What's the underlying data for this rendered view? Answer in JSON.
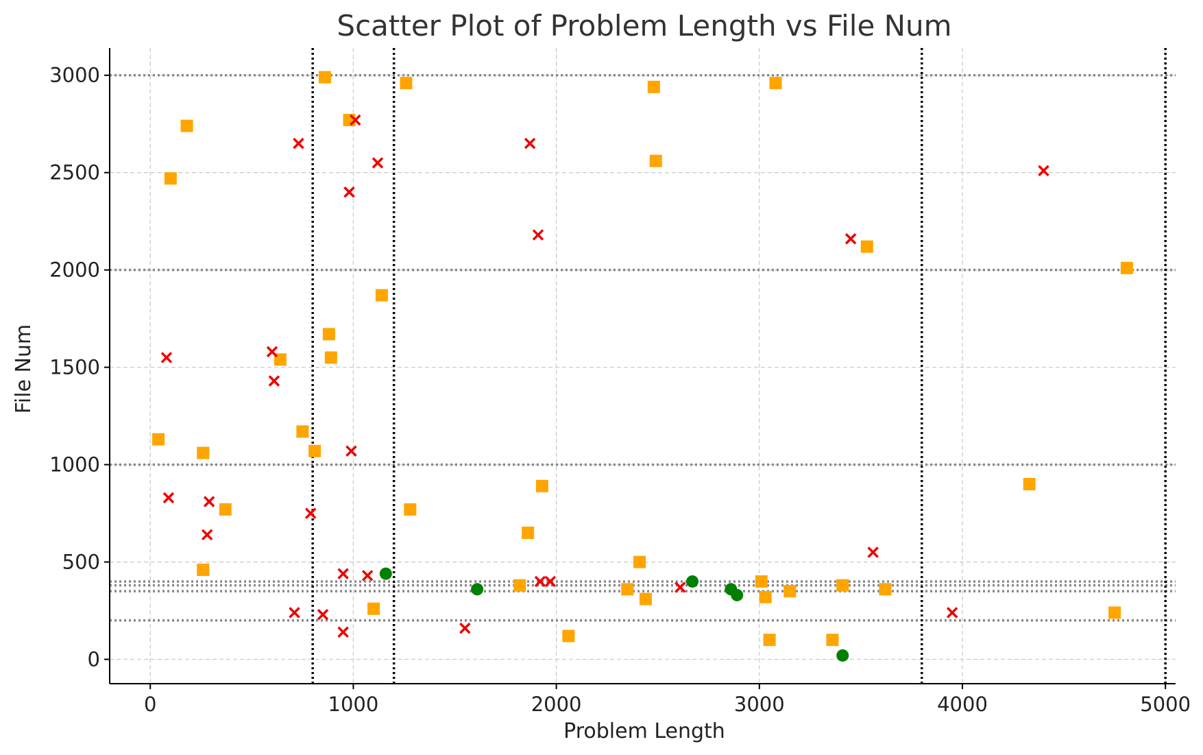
{
  "chart_data": {
    "type": "scatter",
    "title": "Scatter Plot of Problem Length vs File Num",
    "xlabel": "Problem Length",
    "ylabel": "File Num",
    "xlim": [
      -200,
      5050
    ],
    "ylim": [
      -125,
      3140
    ],
    "xticks": [
      0,
      1000,
      2000,
      3000,
      4000,
      5000
    ],
    "yticks": [
      0,
      500,
      1000,
      1500,
      2000,
      2500,
      3000
    ],
    "grid": true,
    "legend": "none",
    "reference_lines": {
      "vertical": [
        800,
        1200,
        3800,
        5000
      ],
      "horizontal": [
        200,
        350,
        380,
        400,
        1000,
        2000,
        3000
      ]
    },
    "colors": {
      "square": "#FFA500",
      "cross": "#EE0000",
      "circle": "#008000",
      "grid": "#cccccc",
      "ref_vertical": "#000000",
      "ref_horizontal": "#888888"
    },
    "series": [
      {
        "marker": "square",
        "points": [
          [
            860,
            2990
          ],
          [
            1260,
            2960
          ],
          [
            2480,
            2940
          ],
          [
            3080,
            2960
          ],
          [
            180,
            2740
          ],
          [
            980,
            2770
          ],
          [
            100,
            2470
          ],
          [
            2490,
            2560
          ],
          [
            3530,
            2120
          ],
          [
            4810,
            2010
          ],
          [
            1140,
            1870
          ],
          [
            880,
            1670
          ],
          [
            640,
            1540
          ],
          [
            890,
            1550
          ],
          [
            40,
            1130
          ],
          [
            260,
            1060
          ],
          [
            750,
            1170
          ],
          [
            810,
            1070
          ],
          [
            1930,
            890
          ],
          [
            4330,
            900
          ],
          [
            370,
            770
          ],
          [
            1280,
            770
          ],
          [
            1860,
            650
          ],
          [
            260,
            460
          ],
          [
            2410,
            500
          ],
          [
            1820,
            380
          ],
          [
            2350,
            360
          ],
          [
            2440,
            310
          ],
          [
            3010,
            400
          ],
          [
            3030,
            320
          ],
          [
            3150,
            350
          ],
          [
            3410,
            380
          ],
          [
            3620,
            360
          ],
          [
            1100,
            260
          ],
          [
            2060,
            120
          ],
          [
            3050,
            100
          ],
          [
            3360,
            100
          ],
          [
            4750,
            240
          ]
        ]
      },
      {
        "marker": "cross",
        "points": [
          [
            730,
            2650
          ],
          [
            1010,
            2770
          ],
          [
            1120,
            2550
          ],
          [
            980,
            2400
          ],
          [
            1870,
            2650
          ],
          [
            1910,
            2180
          ],
          [
            4400,
            2510
          ],
          [
            3450,
            2160
          ],
          [
            80,
            1550
          ],
          [
            600,
            1580
          ],
          [
            610,
            1430
          ],
          [
            990,
            1070
          ],
          [
            90,
            830
          ],
          [
            290,
            810
          ],
          [
            790,
            750
          ],
          [
            280,
            640
          ],
          [
            950,
            440
          ],
          [
            1070,
            430
          ],
          [
            1920,
            400
          ],
          [
            1970,
            400
          ],
          [
            2610,
            370
          ],
          [
            3560,
            550
          ],
          [
            710,
            240
          ],
          [
            850,
            230
          ],
          [
            950,
            140
          ],
          [
            1550,
            160
          ],
          [
            3950,
            240
          ]
        ]
      },
      {
        "marker": "circle",
        "points": [
          [
            1160,
            440
          ],
          [
            1610,
            360
          ],
          [
            2670,
            400
          ],
          [
            2860,
            360
          ],
          [
            2890,
            330
          ],
          [
            3410,
            20
          ]
        ]
      }
    ]
  }
}
